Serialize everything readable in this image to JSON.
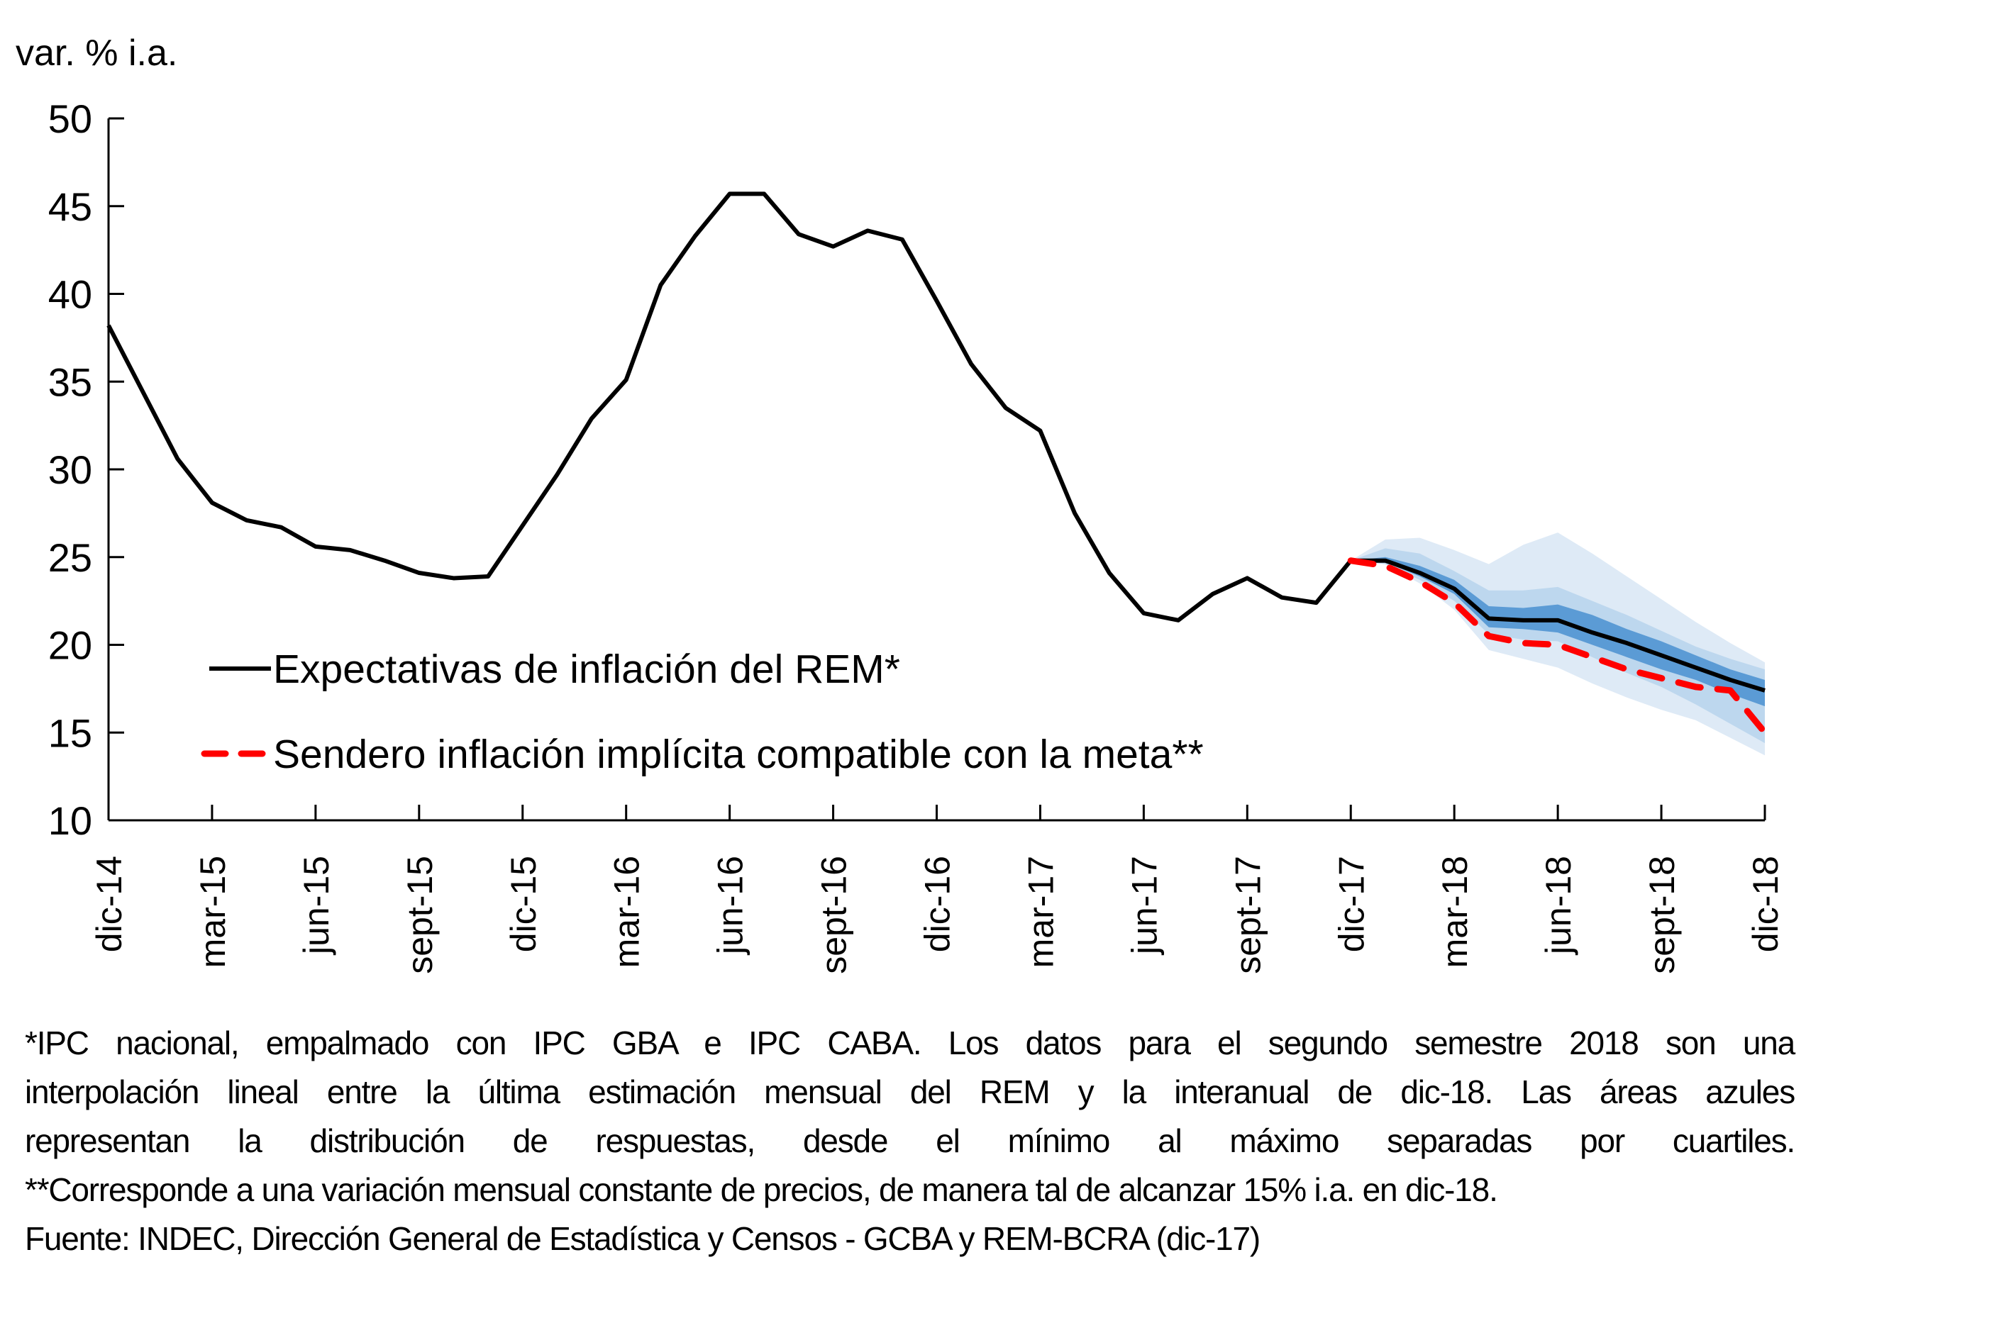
{
  "chart_data": {
    "type": "line",
    "title": "",
    "ylabel": "var. % i.a.",
    "xlabel": "",
    "ylim": [
      10,
      50
    ],
    "yticks": [
      10,
      15,
      20,
      25,
      30,
      35,
      40,
      45,
      50
    ],
    "x": [
      "dic-14",
      "ene-15",
      "feb-15",
      "mar-15",
      "abr-15",
      "may-15",
      "jun-15",
      "jul-15",
      "ago-15",
      "sept-15",
      "oct-15",
      "nov-15",
      "dic-15",
      "ene-16",
      "feb-16",
      "mar-16",
      "abr-16",
      "may-16",
      "jun-16",
      "jul-16",
      "ago-16",
      "sept-16",
      "oct-16",
      "nov-16",
      "dic-16",
      "ene-17",
      "feb-17",
      "mar-17",
      "abr-17",
      "may-17",
      "jun-17",
      "jul-17",
      "ago-17",
      "sept-17",
      "oct-17",
      "nov-17",
      "dic-17",
      "ene-18",
      "feb-18",
      "mar-18",
      "abr-18",
      "may-18",
      "jun-18",
      "jul-18",
      "ago-18",
      "sept-18",
      "oct-18",
      "nov-18",
      "dic-18"
    ],
    "xtick_labels": [
      "dic-14",
      "mar-15",
      "jun-15",
      "sept-15",
      "dic-15",
      "mar-16",
      "jun-16",
      "sept-16",
      "dic-16",
      "mar-17",
      "jun-17",
      "sept-17",
      "dic-17",
      "mar-18",
      "jun-18",
      "sept-18",
      "dic-18"
    ],
    "grid": false,
    "legend_position": "lower-left-inside",
    "series": [
      {
        "name": "Expectativas de inflación del REM*",
        "style": "solid",
        "color": "#000000",
        "values": [
          38.2,
          34.4,
          30.6,
          28.1,
          27.1,
          26.7,
          25.6,
          25.4,
          24.8,
          24.1,
          23.8,
          23.9,
          26.8,
          29.7,
          32.9,
          35.1,
          40.5,
          43.3,
          45.7,
          45.7,
          43.4,
          42.7,
          43.6,
          43.1,
          39.6,
          36.0,
          33.5,
          32.2,
          27.5,
          24.1,
          21.8,
          21.4,
          22.9,
          23.8,
          22.7,
          22.4,
          24.8,
          24.8,
          24.1,
          23.2,
          21.5,
          21.4,
          21.4,
          20.7,
          20.1,
          19.4,
          18.7,
          18.0,
          17.4
        ]
      },
      {
        "name": "Sendero inflación implícita compatible con la meta**",
        "style": "dashed",
        "color": "#FF0000",
        "start_index": 36,
        "values": [
          24.8,
          24.5,
          23.6,
          22.4,
          20.5,
          20.1,
          20.0,
          19.3,
          18.6,
          18.1,
          17.6,
          17.4,
          15.0
        ]
      }
    ],
    "bands": {
      "start_index": 36,
      "description": "Distribución de respuestas del REM, del mínimo al máximo separadas por cuartiles",
      "max": [
        24.8,
        26.0,
        26.1,
        25.4,
        24.6,
        25.7,
        26.4,
        25.2,
        23.9,
        22.6,
        21.3,
        20.1,
        19.0
      ],
      "q3": [
        24.8,
        25.5,
        25.2,
        24.2,
        23.1,
        23.1,
        23.3,
        22.5,
        21.7,
        20.8,
        19.9,
        19.2,
        18.6
      ],
      "q2_top": [
        24.8,
        25.0,
        24.5,
        23.7,
        22.2,
        22.1,
        22.3,
        21.7,
        20.9,
        20.2,
        19.4,
        18.6,
        18.0
      ],
      "q2_bottom": [
        24.8,
        24.7,
        23.9,
        22.9,
        21.0,
        20.9,
        20.7,
        20.0,
        19.3,
        18.6,
        18.0,
        17.2,
        16.5
      ],
      "q1": [
        24.8,
        24.6,
        23.7,
        22.5,
        20.6,
        20.3,
        20.2,
        19.3,
        18.4,
        17.6,
        16.6,
        15.5,
        14.4
      ],
      "min": [
        24.8,
        24.6,
        23.5,
        22.0,
        19.7,
        19.2,
        18.7,
        17.8,
        17.0,
        16.3,
        15.7,
        14.7,
        13.7
      ],
      "colors": {
        "outer": "#DEEAF6",
        "middle": "#BDD7EE",
        "inner": "#5B9BD5"
      }
    }
  },
  "footnote": {
    "lines": [
      "*IPC nacional, empalmado con IPC GBA e IPC CABA. Los datos para el segundo semestre 2018 son una",
      "interpolación lineal entre la última estimación mensual del REM y la interanual de dic-18. Las áreas azules",
      "representan la distribución de respuestas, desde el mínimo al máximo separadas por cuartiles.",
      "**Corresponde a una variación mensual constante de precios, de manera tal de alcanzar 15% i.a. en dic-18.",
      "Fuente: INDEC, Dirección General de Estadística y Censos - GCBA y REM-BCRA (dic-17)"
    ]
  }
}
